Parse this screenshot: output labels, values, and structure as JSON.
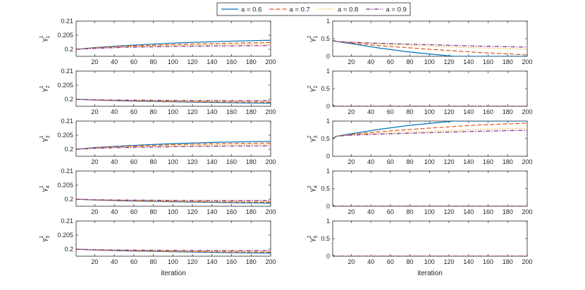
{
  "figure": {
    "xlabel": "iteration"
  },
  "legend": {
    "entries": [
      {
        "label": "a = 0.6",
        "color": "#0072BD",
        "dash": "solid"
      },
      {
        "label": "a = 0.7",
        "color": "#D95319",
        "dash": "dashed"
      },
      {
        "label": "a = 0.8",
        "color": "#EDB120",
        "dash": "dotted"
      },
      {
        "label": "a = 0.9",
        "color": "#7E2F8E",
        "dash": "dashdot"
      }
    ]
  },
  "chart_data": [
    {
      "type": "line",
      "id": "g1_1",
      "ylabel_base": "γ",
      "ylabel_sup": "1",
      "ylabel_sub": "1",
      "xlim": [
        1,
        200
      ],
      "ylim": [
        0.1975,
        0.21
      ],
      "xticks": [
        20,
        40,
        60,
        80,
        100,
        120,
        140,
        160,
        180,
        200
      ],
      "yticks": [
        {
          "v": 0.2,
          "label": "0.2"
        },
        {
          "v": 0.205,
          "label": "0.205"
        },
        {
          "v": 0.21,
          "label": "0.21"
        }
      ],
      "series": [
        {
          "name": "a = 0.6",
          "x": [
            1,
            20,
            50,
            100,
            150,
            200
          ],
          "y": [
            0.2,
            0.2006,
            0.2013,
            0.2022,
            0.2028,
            0.2032
          ]
        },
        {
          "name": "a = 0.7",
          "x": [
            1,
            20,
            50,
            100,
            150,
            200
          ],
          "y": [
            0.2,
            0.2005,
            0.2011,
            0.2017,
            0.2021,
            0.2024
          ]
        },
        {
          "name": "a = 0.8",
          "x": [
            1,
            20,
            50,
            100,
            150,
            200
          ],
          "y": [
            0.2,
            0.2004,
            0.2009,
            0.2013,
            0.2016,
            0.2018
          ]
        },
        {
          "name": "a = 0.9",
          "x": [
            1,
            20,
            50,
            100,
            150,
            200
          ],
          "y": [
            0.2,
            0.2003,
            0.2007,
            0.201,
            0.2012,
            0.2013
          ]
        }
      ]
    },
    {
      "type": "line",
      "id": "g2_1",
      "ylabel_base": "γ",
      "ylabel_sup": "2",
      "ylabel_sub": "1",
      "xlim": [
        1,
        200
      ],
      "ylim": [
        0,
        1
      ],
      "xticks": [
        20,
        40,
        60,
        80,
        100,
        120,
        140,
        160,
        180,
        200
      ],
      "yticks": [
        {
          "v": 0,
          "label": "0"
        },
        {
          "v": 0.5,
          "label": "0.5"
        },
        {
          "v": 1,
          "label": "1"
        }
      ],
      "series": [
        {
          "name": "a = 0.6",
          "x": [
            1,
            5,
            20,
            50,
            80,
            110,
            125,
            200
          ],
          "y": [
            0.45,
            0.42,
            0.36,
            0.23,
            0.12,
            0.04,
            0.0,
            0.0
          ]
        },
        {
          "name": "a = 0.7",
          "x": [
            1,
            5,
            20,
            50,
            100,
            150,
            200
          ],
          "y": [
            0.45,
            0.42,
            0.38,
            0.3,
            0.2,
            0.11,
            0.04
          ]
        },
        {
          "name": "a = 0.8",
          "x": [
            1,
            5,
            20,
            50,
            100,
            150,
            200
          ],
          "y": [
            0.45,
            0.42,
            0.39,
            0.35,
            0.29,
            0.24,
            0.2
          ]
        },
        {
          "name": "a = 0.9",
          "x": [
            1,
            5,
            20,
            50,
            100,
            150,
            200
          ],
          "y": [
            0.45,
            0.42,
            0.4,
            0.37,
            0.33,
            0.29,
            0.26
          ]
        }
      ]
    },
    {
      "type": "line",
      "id": "g1_2",
      "ylabel_base": "γ",
      "ylabel_sup": "1",
      "ylabel_sub": "2",
      "xlim": [
        1,
        200
      ],
      "ylim": [
        0.1975,
        0.21
      ],
      "xticks": [
        20,
        40,
        60,
        80,
        100,
        120,
        140,
        160,
        180,
        200
      ],
      "yticks": [
        {
          "v": 0.2,
          "label": "0.2"
        },
        {
          "v": 0.205,
          "label": "0.205"
        },
        {
          "v": 0.21,
          "label": "0.21"
        }
      ],
      "series": [
        {
          "name": "a = 0.6",
          "x": [
            1,
            20,
            50,
            100,
            150,
            200
          ],
          "y": [
            0.2,
            0.1997,
            0.1994,
            0.1991,
            0.1988,
            0.1986
          ]
        },
        {
          "name": "a = 0.7",
          "x": [
            1,
            20,
            50,
            100,
            150,
            200
          ],
          "y": [
            0.2,
            0.1997,
            0.1995,
            0.1992,
            0.199,
            0.1989
          ]
        },
        {
          "name": "a = 0.8",
          "x": [
            1,
            20,
            50,
            100,
            150,
            200
          ],
          "y": [
            0.2,
            0.1998,
            0.1996,
            0.1994,
            0.1993,
            0.1992
          ]
        },
        {
          "name": "a = 0.9",
          "x": [
            1,
            20,
            50,
            100,
            150,
            200
          ],
          "y": [
            0.2,
            0.1998,
            0.1997,
            0.1996,
            0.1995,
            0.1995
          ]
        }
      ]
    },
    {
      "type": "line",
      "id": "g2_2",
      "ylabel_base": "γ",
      "ylabel_sup": "2",
      "ylabel_sub": "2",
      "xlim": [
        1,
        200
      ],
      "ylim": [
        0,
        1
      ],
      "xticks": [
        20,
        40,
        60,
        80,
        100,
        120,
        140,
        160,
        180,
        200
      ],
      "yticks": [
        {
          "v": 0,
          "label": "0"
        },
        {
          "v": 0.5,
          "label": "0.5"
        },
        {
          "v": 1,
          "label": "1"
        }
      ],
      "series": [
        {
          "name": "a = 0.6",
          "x": [
            1,
            2,
            3,
            200
          ],
          "y": [
            0.05,
            0.01,
            0.0,
            0.0
          ]
        },
        {
          "name": "a = 0.7",
          "x": [
            1,
            2,
            3,
            200
          ],
          "y": [
            0.05,
            0.01,
            0.0,
            0.0
          ]
        },
        {
          "name": "a = 0.8",
          "x": [
            1,
            2,
            3,
            200
          ],
          "y": [
            0.05,
            0.01,
            0.0,
            0.0
          ]
        },
        {
          "name": "a = 0.9",
          "x": [
            1,
            2,
            3,
            200
          ],
          "y": [
            0.05,
            0.01,
            0.0,
            0.0
          ]
        }
      ]
    },
    {
      "type": "line",
      "id": "g1_3",
      "ylabel_base": "γ",
      "ylabel_sup": "1",
      "ylabel_sub": "3",
      "xlim": [
        1,
        200
      ],
      "ylim": [
        0.1975,
        0.21
      ],
      "xticks": [
        20,
        40,
        60,
        80,
        100,
        120,
        140,
        160,
        180,
        200
      ],
      "yticks": [
        {
          "v": 0.2,
          "label": "0.2"
        },
        {
          "v": 0.205,
          "label": "0.205"
        },
        {
          "v": 0.21,
          "label": "0.21"
        }
      ],
      "series": [
        {
          "name": "a = 0.6",
          "x": [
            1,
            20,
            50,
            100,
            150,
            200
          ],
          "y": [
            0.2,
            0.2006,
            0.2012,
            0.202,
            0.2025,
            0.2028
          ]
        },
        {
          "name": "a = 0.7",
          "x": [
            1,
            20,
            50,
            100,
            150,
            200
          ],
          "y": [
            0.2,
            0.2005,
            0.201,
            0.2016,
            0.202,
            0.2022
          ]
        },
        {
          "name": "a = 0.8",
          "x": [
            1,
            20,
            50,
            100,
            150,
            200
          ],
          "y": [
            0.2,
            0.2004,
            0.2008,
            0.2012,
            0.2015,
            0.2017
          ]
        },
        {
          "name": "a = 0.9",
          "x": [
            1,
            20,
            50,
            100,
            150,
            200
          ],
          "y": [
            0.2,
            0.2003,
            0.2006,
            0.2009,
            0.2011,
            0.2012
          ]
        }
      ]
    },
    {
      "type": "line",
      "id": "g2_3",
      "ylabel_base": "γ",
      "ylabel_sup": "2",
      "ylabel_sub": "3",
      "xlim": [
        1,
        200
      ],
      "ylim": [
        0,
        1
      ],
      "xticks": [
        20,
        40,
        60,
        80,
        100,
        120,
        140,
        160,
        180,
        200
      ],
      "yticks": [
        {
          "v": 0,
          "label": "0"
        },
        {
          "v": 0.5,
          "label": "0.5"
        },
        {
          "v": 1,
          "label": "1"
        }
      ],
      "series": [
        {
          "name": "a = 0.6",
          "x": [
            1,
            5,
            20,
            50,
            80,
            110,
            125,
            200
          ],
          "y": [
            0.5,
            0.57,
            0.64,
            0.77,
            0.88,
            0.96,
            1.0,
            1.0
          ]
        },
        {
          "name": "a = 0.7",
          "x": [
            1,
            5,
            20,
            50,
            100,
            150,
            200
          ],
          "y": [
            0.5,
            0.57,
            0.62,
            0.7,
            0.8,
            0.89,
            0.94
          ]
        },
        {
          "name": "a = 0.8",
          "x": [
            1,
            5,
            20,
            50,
            100,
            150,
            200
          ],
          "y": [
            0.5,
            0.57,
            0.61,
            0.65,
            0.71,
            0.76,
            0.8
          ]
        },
        {
          "name": "a = 0.9",
          "x": [
            1,
            5,
            20,
            50,
            100,
            150,
            200
          ],
          "y": [
            0.5,
            0.57,
            0.6,
            0.63,
            0.67,
            0.71,
            0.74
          ]
        }
      ]
    },
    {
      "type": "line",
      "id": "g1_4",
      "ylabel_base": "γ",
      "ylabel_sup": "1",
      "ylabel_sub": "4",
      "xlim": [
        1,
        200
      ],
      "ylim": [
        0.1975,
        0.21
      ],
      "xticks": [
        20,
        40,
        60,
        80,
        100,
        120,
        140,
        160,
        180,
        200
      ],
      "yticks": [
        {
          "v": 0.2,
          "label": "0.2"
        },
        {
          "v": 0.205,
          "label": "0.205"
        },
        {
          "v": 0.21,
          "label": "0.21"
        }
      ],
      "series": [
        {
          "name": "a = 0.6",
          "x": [
            1,
            20,
            50,
            100,
            150,
            200
          ],
          "y": [
            0.2,
            0.1997,
            0.1994,
            0.1991,
            0.1988,
            0.1986
          ]
        },
        {
          "name": "a = 0.7",
          "x": [
            1,
            20,
            50,
            100,
            150,
            200
          ],
          "y": [
            0.2,
            0.1997,
            0.1995,
            0.1992,
            0.199,
            0.1989
          ]
        },
        {
          "name": "a = 0.8",
          "x": [
            1,
            20,
            50,
            100,
            150,
            200
          ],
          "y": [
            0.2,
            0.1998,
            0.1996,
            0.1994,
            0.1993,
            0.1992
          ]
        },
        {
          "name": "a = 0.9",
          "x": [
            1,
            20,
            50,
            100,
            150,
            200
          ],
          "y": [
            0.2,
            0.1998,
            0.1997,
            0.1996,
            0.1995,
            0.1995
          ]
        }
      ]
    },
    {
      "type": "line",
      "id": "g2_4",
      "ylabel_base": "γ",
      "ylabel_sup": "2",
      "ylabel_sub": "4",
      "xlim": [
        1,
        200
      ],
      "ylim": [
        0,
        1
      ],
      "xticks": [
        20,
        40,
        60,
        80,
        100,
        120,
        140,
        160,
        180,
        200
      ],
      "yticks": [
        {
          "v": 0,
          "label": "0"
        },
        {
          "v": 0.5,
          "label": "0.5"
        },
        {
          "v": 1,
          "label": "1"
        }
      ],
      "series": [
        {
          "name": "a = 0.6",
          "x": [
            1,
            2,
            3,
            200
          ],
          "y": [
            0.05,
            0.01,
            0.0,
            0.0
          ]
        },
        {
          "name": "a = 0.7",
          "x": [
            1,
            2,
            3,
            200
          ],
          "y": [
            0.05,
            0.01,
            0.0,
            0.0
          ]
        },
        {
          "name": "a = 0.8",
          "x": [
            1,
            2,
            3,
            200
          ],
          "y": [
            0.05,
            0.01,
            0.0,
            0.0
          ]
        },
        {
          "name": "a = 0.9",
          "x": [
            1,
            2,
            3,
            200
          ],
          "y": [
            0.05,
            0.01,
            0.0,
            0.0
          ]
        }
      ]
    },
    {
      "type": "line",
      "id": "g1_5",
      "ylabel_base": "γ",
      "ylabel_sup": "1",
      "ylabel_sub": "5",
      "xlim": [
        1,
        200
      ],
      "ylim": [
        0.1975,
        0.21
      ],
      "xticks": [
        20,
        40,
        60,
        80,
        100,
        120,
        140,
        160,
        180,
        200
      ],
      "yticks": [
        {
          "v": 0.2,
          "label": "0.2"
        },
        {
          "v": 0.205,
          "label": "0.205"
        },
        {
          "v": 0.21,
          "label": "0.21"
        }
      ],
      "series": [
        {
          "name": "a = 0.6",
          "x": [
            1,
            20,
            50,
            100,
            150,
            200
          ],
          "y": [
            0.2,
            0.1997,
            0.1994,
            0.1991,
            0.1988,
            0.1986
          ]
        },
        {
          "name": "a = 0.7",
          "x": [
            1,
            20,
            50,
            100,
            150,
            200
          ],
          "y": [
            0.2,
            0.1997,
            0.1995,
            0.1992,
            0.199,
            0.1989
          ]
        },
        {
          "name": "a = 0.8",
          "x": [
            1,
            20,
            50,
            100,
            150,
            200
          ],
          "y": [
            0.2,
            0.1998,
            0.1996,
            0.1994,
            0.1993,
            0.1992
          ]
        },
        {
          "name": "a = 0.9",
          "x": [
            1,
            20,
            50,
            100,
            150,
            200
          ],
          "y": [
            0.2,
            0.1998,
            0.1997,
            0.1996,
            0.1995,
            0.1995
          ]
        }
      ]
    },
    {
      "type": "line",
      "id": "g2_5",
      "ylabel_base": "γ",
      "ylabel_sup": "2",
      "ylabel_sub": "5",
      "xlim": [
        1,
        200
      ],
      "ylim": [
        0,
        1
      ],
      "xticks": [
        20,
        40,
        60,
        80,
        100,
        120,
        140,
        160,
        180,
        200
      ],
      "yticks": [
        {
          "v": 0,
          "label": "0"
        },
        {
          "v": 0.5,
          "label": "0.5"
        },
        {
          "v": 1,
          "label": "1"
        }
      ],
      "series": [
        {
          "name": "a = 0.6",
          "x": [
            1,
            2,
            3,
            200
          ],
          "y": [
            0.05,
            0.01,
            0.0,
            0.0
          ]
        },
        {
          "name": "a = 0.7",
          "x": [
            1,
            2,
            3,
            200
          ],
          "y": [
            0.05,
            0.01,
            0.0,
            0.0
          ]
        },
        {
          "name": "a = 0.8",
          "x": [
            1,
            2,
            3,
            200
          ],
          "y": [
            0.05,
            0.01,
            0.0,
            0.0
          ]
        },
        {
          "name": "a = 0.9",
          "x": [
            1,
            2,
            3,
            200
          ],
          "y": [
            0.05,
            0.01,
            0.0,
            0.0
          ]
        }
      ]
    }
  ]
}
